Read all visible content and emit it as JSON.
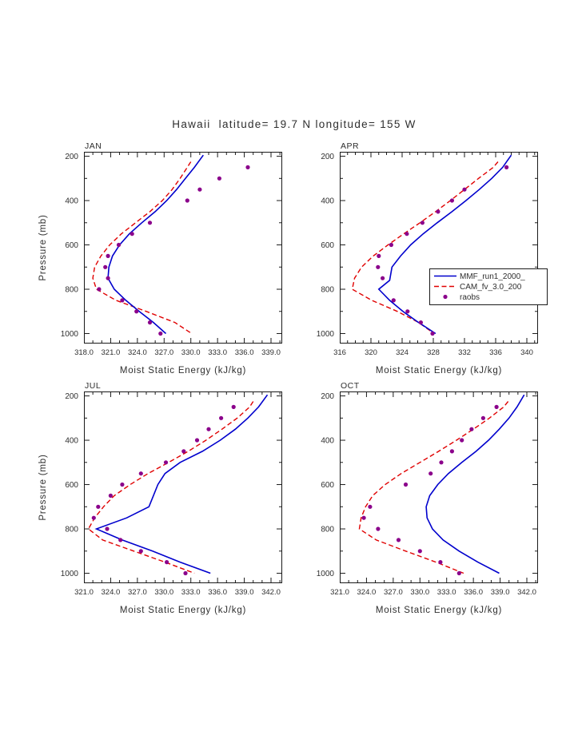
{
  "title": "Hawaii  latitude= 19.7 N longitude= 155 W",
  "ylabel": "Pressure (mb)",
  "xlabel": "Moist Static Energy (kJ/kg)",
  "colors": {
    "mmf": "#0000cd",
    "cam": "#e00000",
    "raobs": "#8b008b",
    "frame": "#1a1a1a"
  },
  "legend": {
    "position": "overlapping right edge of APR panel",
    "entries": [
      {
        "label": "MMF_run1_2000_",
        "color": "#0000cd",
        "style": "solid-line"
      },
      {
        "label": "CAM_fv_3.0_200",
        "color": "#e00000",
        "style": "dashed-line"
      },
      {
        "label": "raobs",
        "color": "#8b008b",
        "style": "dot"
      }
    ]
  },
  "pressure_axis": {
    "top": 180,
    "bottom": 1045,
    "inverted": true,
    "ticks": [
      200,
      400,
      600,
      800,
      1000
    ],
    "minor": [
      300,
      500,
      700,
      900
    ]
  },
  "chart_data": [
    {
      "type": "line",
      "month": "JAN",
      "xlim": [
        318,
        339
      ],
      "xticks": {
        "values": [
          318,
          321,
          324,
          327,
          330,
          333,
          336,
          339
        ],
        "labels": [
          "318.0",
          "321.0",
          "324.0",
          "327.0",
          "330.0",
          "333.0",
          "336.0",
          "339.0"
        ],
        "minor_step": 1
      },
      "series": {
        "mmf": {
          "pressure": [
            195,
            250,
            300,
            350,
            400,
            450,
            500,
            550,
            600,
            650,
            700,
            750,
            800,
            850,
            900,
            950,
            1000
          ],
          "values": [
            331.4,
            330.4,
            329.4,
            328.4,
            327.3,
            326.0,
            324.5,
            323.1,
            322.0,
            321.2,
            320.8,
            320.7,
            321.4,
            322.7,
            324.2,
            325.8,
            327.2
          ]
        },
        "cam": {
          "pressure": [
            225,
            250,
            300,
            350,
            400,
            450,
            500,
            550,
            600,
            650,
            700,
            750,
            800,
            850,
            900,
            950,
            1000
          ],
          "values": [
            330.0,
            329.6,
            328.8,
            327.9,
            326.8,
            325.4,
            323.8,
            322.2,
            320.9,
            319.9,
            319.2,
            319.0,
            319.4,
            321.6,
            325.0,
            328.2,
            330.1
          ]
        },
        "raobs": {
          "pressure": [
            250,
            300,
            350,
            400,
            500,
            550,
            600,
            650,
            700,
            750,
            800,
            850,
            900,
            950,
            1000
          ],
          "values": [
            336.4,
            333.2,
            331.0,
            329.6,
            325.4,
            323.4,
            321.9,
            320.7,
            320.4,
            320.7,
            319.7,
            322.3,
            323.9,
            325.4,
            326.6
          ]
        }
      }
    },
    {
      "type": "line",
      "month": "APR",
      "xlim": [
        316,
        340
      ],
      "xticks": {
        "values": [
          316,
          320,
          324,
          328,
          332,
          336,
          340
        ],
        "labels": [
          "316",
          "320",
          "324",
          "328",
          "332",
          "336",
          "340"
        ],
        "minor_step": 1
      },
      "series": {
        "mmf": {
          "pressure": [
            195,
            250,
            300,
            350,
            400,
            450,
            500,
            550,
            600,
            650,
            700,
            760,
            800,
            850,
            900,
            950,
            1000
          ],
          "values": [
            338.0,
            336.9,
            335.5,
            333.9,
            332.2,
            330.4,
            328.5,
            326.7,
            325.1,
            323.8,
            322.7,
            322.4,
            321.0,
            322.4,
            324.1,
            326.1,
            328.3
          ]
        },
        "cam": {
          "pressure": [
            225,
            250,
            300,
            350,
            400,
            450,
            500,
            550,
            600,
            650,
            700,
            750,
            800,
            850,
            900,
            950,
            1000
          ],
          "values": [
            336.3,
            335.7,
            333.8,
            332.0,
            330.2,
            328.3,
            326.3,
            324.2,
            322.2,
            320.3,
            318.8,
            317.9,
            317.6,
            320.1,
            323.4,
            326.1,
            328.1
          ]
        },
        "raobs": {
          "pressure": [
            250,
            350,
            400,
            450,
            500,
            550,
            600,
            650,
            700,
            750,
            850,
            900,
            950,
            1000
          ],
          "values": [
            337.4,
            332.0,
            330.4,
            328.6,
            326.6,
            324.6,
            322.6,
            321.0,
            320.9,
            321.5,
            322.9,
            324.7,
            326.4,
            327.9
          ]
        }
      }
    },
    {
      "type": "line",
      "month": "JUL",
      "xlim": [
        321,
        342
      ],
      "xticks": {
        "values": [
          321,
          324,
          327,
          330,
          333,
          336,
          339,
          342
        ],
        "labels": [
          "321.0",
          "324.0",
          "327.0",
          "330.0",
          "333.0",
          "336.0",
          "339.0",
          "342.0"
        ],
        "minor_step": 1
      },
      "series": {
        "mmf": {
          "pressure": [
            195,
            250,
            300,
            350,
            400,
            450,
            500,
            550,
            600,
            650,
            700,
            750,
            800,
            850,
            900,
            950,
            1000
          ],
          "values": [
            341.6,
            340.6,
            339.4,
            338.0,
            336.3,
            334.3,
            331.8,
            330.1,
            329.3,
            328.8,
            328.3,
            325.8,
            322.4,
            325.3,
            328.7,
            331.8,
            335.2
          ]
        },
        "cam": {
          "pressure": [
            225,
            250,
            300,
            350,
            400,
            450,
            500,
            550,
            600,
            650,
            700,
            750,
            800,
            850,
            900,
            950,
            1000
          ],
          "values": [
            340.0,
            339.6,
            338.2,
            336.5,
            334.7,
            332.7,
            330.5,
            328.2,
            326.2,
            324.4,
            323.2,
            322.2,
            321.5,
            323.1,
            326.6,
            330.1,
            333.4
          ]
        },
        "raobs": {
          "pressure": [
            250,
            300,
            350,
            400,
            450,
            500,
            550,
            600,
            650,
            700,
            750,
            800,
            850,
            900,
            950,
            1000
          ],
          "values": [
            337.8,
            336.4,
            335.0,
            333.7,
            332.2,
            330.2,
            327.4,
            325.3,
            324.0,
            322.6,
            322.1,
            323.6,
            325.1,
            327.4,
            330.3,
            332.4
          ]
        }
      }
    },
    {
      "type": "line",
      "month": "OCT",
      "xlim": [
        321,
        342
      ],
      "xticks": {
        "values": [
          321,
          324,
          327,
          330,
          333,
          336,
          339,
          342
        ],
        "labels": [
          "321.0",
          "324.0",
          "327.0",
          "330.0",
          "333.0",
          "336.0",
          "339.0",
          "342.0"
        ],
        "minor_step": 1
      },
      "series": {
        "mmf": {
          "pressure": [
            195,
            250,
            300,
            350,
            400,
            450,
            500,
            550,
            600,
            650,
            700,
            750,
            800,
            850,
            900,
            950,
            1000
          ],
          "values": [
            341.7,
            340.9,
            340.0,
            338.9,
            337.7,
            336.3,
            334.7,
            333.2,
            332.0,
            331.1,
            330.7,
            330.8,
            331.4,
            332.6,
            334.4,
            336.5,
            338.9
          ]
        },
        "cam": {
          "pressure": [
            225,
            250,
            300,
            350,
            400,
            450,
            500,
            550,
            600,
            650,
            700,
            750,
            800,
            850,
            900,
            950,
            1000
          ],
          "values": [
            339.9,
            339.4,
            337.8,
            336.0,
            334.1,
            332.1,
            330.0,
            327.9,
            326.1,
            324.7,
            323.9,
            323.4,
            323.2,
            325.1,
            328.4,
            331.8,
            334.9
          ]
        },
        "raobs": {
          "pressure": [
            250,
            300,
            350,
            400,
            450,
            500,
            550,
            600,
            700,
            750,
            800,
            850,
            900,
            950,
            1000
          ],
          "values": [
            338.6,
            337.1,
            335.8,
            334.7,
            333.6,
            332.4,
            331.2,
            328.4,
            324.4,
            323.7,
            325.3,
            327.6,
            330.0,
            332.3,
            334.4
          ]
        }
      }
    }
  ]
}
